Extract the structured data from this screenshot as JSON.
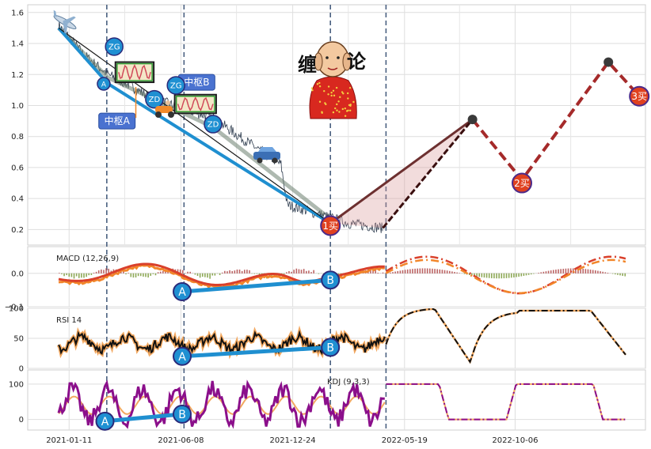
{
  "colors": {
    "price": "#2f3d4f",
    "stroke_blue": "#1f8fd0",
    "trend_red": "#a52a2a",
    "macd_orange": "#f2862a",
    "macd_red": "#d9402b",
    "kdj_purple": "#8b0f8b",
    "marker_blue": "#1f90d2",
    "marker_red": "#e0411f"
  },
  "chart_data": {
    "type": "line",
    "x_ticks": [
      "2021-01-11",
      "2021-06-08",
      "2021-12-24",
      "2022-05-19",
      "2022-10-06"
    ],
    "vlines": [
      "2021-03-01",
      "2021-06-10",
      "2022-01-15",
      "2022-05-20"
    ],
    "price_panel": {
      "ylim": [
        0.1,
        1.65
      ],
      "yticks": [
        "0.2",
        "0.4",
        "0.6",
        "0.8",
        "1.0",
        "1.2",
        "1.4",
        "1.6"
      ],
      "stroke_line": [
        [
          0.05,
          1.5
        ],
        [
          0.13,
          1.14
        ],
        [
          0.49,
          0.24
        ]
      ],
      "trend_forecast": [
        [
          0.49,
          0.24
        ],
        [
          0.72,
          0.91
        ],
        [
          0.8,
          0.52
        ],
        [
          0.94,
          1.28
        ],
        [
          0.99,
          1.06
        ]
      ],
      "markers": [
        {
          "label": "ZG",
          "x": 0.14,
          "y": 1.38
        },
        {
          "label": "A",
          "x": 0.123,
          "y": 1.14
        },
        {
          "label": "ZD",
          "x": 0.205,
          "y": 1.04
        },
        {
          "label": "ZG",
          "x": 0.24,
          "y": 1.13
        },
        {
          "label": "ZD",
          "x": 0.3,
          "y": 0.88
        }
      ],
      "boxes": [
        {
          "label": "中枢A"
        },
        {
          "label": "中枢B"
        }
      ],
      "buy_points": [
        "1买",
        "2买",
        "3买"
      ],
      "logo_text": [
        "缠",
        "论"
      ]
    },
    "macd_panel": {
      "label": "MACD (12,26,9)",
      "ylim": [
        -0.1,
        0.08
      ],
      "yticks": [
        "0.0",
        "−0.1"
      ],
      "divergence": [
        {
          "label": "A",
          "x": 0.25,
          "y": -0.055
        },
        {
          "label": "B",
          "x": 0.49,
          "y": -0.02
        }
      ]
    },
    "rsi_panel": {
      "label": "RSI 14",
      "ylim": [
        0,
        100
      ],
      "yticks": [
        "100",
        "50",
        "0"
      ],
      "divergence": [
        {
          "label": "A",
          "x": 0.25,
          "y": 20
        },
        {
          "label": "B",
          "x": 0.49,
          "y": 35
        }
      ]
    },
    "kdj_panel": {
      "label": "KDJ (9,3,3)",
      "ylim": [
        -30,
        140
      ],
      "yticks": [
        "100",
        "0"
      ],
      "divergence": [
        {
          "label": "A",
          "x": 0.125,
          "y": -5
        },
        {
          "label": "B",
          "x": 0.25,
          "y": 15
        }
      ]
    }
  }
}
